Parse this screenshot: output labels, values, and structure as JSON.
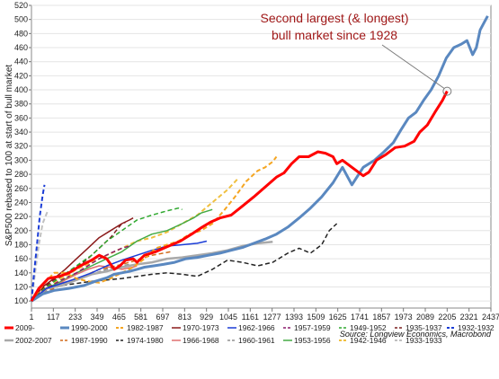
{
  "chart_data": {
    "type": "line",
    "annotation": {
      "lines": [
        "Second largest (& longest)",
        "bull market since 1928"
      ],
      "color": "#a01818",
      "target_x": 2205,
      "target_y": 398
    },
    "ylabel": "S&P500 rebased to 100 at start of bull market",
    "source": "Source: Longview Economics, Macrobond",
    "ylim": [
      90,
      520
    ],
    "xlim": [
      1,
      2437
    ],
    "yticks": [
      100,
      120,
      140,
      160,
      180,
      200,
      220,
      240,
      260,
      280,
      300,
      320,
      340,
      360,
      380,
      400,
      420,
      440,
      460,
      480,
      500,
      520
    ],
    "xticks": [
      1,
      117,
      233,
      349,
      465,
      581,
      697,
      813,
      929,
      1045,
      1161,
      1277,
      1393,
      1509,
      1625,
      1741,
      1857,
      1973,
      2089,
      2205,
      2321,
      2437
    ],
    "legend": [
      {
        "name": "2009-",
        "color": "#ff0000",
        "dash": "solid",
        "width": 3
      },
      {
        "name": "1990-2000",
        "color": "#5a88c0",
        "dash": "solid",
        "width": 3
      },
      {
        "name": "1982-1987",
        "color": "#f5a623",
        "dash": "dash",
        "width": 2
      },
      {
        "name": "1970-1973",
        "color": "#8b1a1a",
        "dash": "solid",
        "width": 1.5
      },
      {
        "name": "1962-1966",
        "color": "#1a3cd6",
        "dash": "solid",
        "width": 1.5
      },
      {
        "name": "1957-1959",
        "color": "#8b1a6b",
        "dash": "dash",
        "width": 1.5
      },
      {
        "name": "1949-1952",
        "color": "#2ea82e",
        "dash": "dash",
        "width": 1.5
      },
      {
        "name": "1935-1937",
        "color": "#7a1e1e",
        "dash": "dash",
        "width": 1.5
      },
      {
        "name": "1932-1932",
        "color": "#1a3cd6",
        "dash": "dash",
        "width": 2
      },
      {
        "name": "2002-2007",
        "color": "#a9a9a9",
        "dash": "solid",
        "width": 2.5
      },
      {
        "name": "1987-1990",
        "color": "#d06a1a",
        "dash": "dash",
        "width": 1.5
      },
      {
        "name": "1974-1980",
        "color": "#222222",
        "dash": "dash",
        "width": 1.5
      },
      {
        "name": "1966-1968",
        "color": "#e07070",
        "dash": "solid",
        "width": 1.5
      },
      {
        "name": "1960-1961",
        "color": "#909090",
        "dash": "dash",
        "width": 1.5
      },
      {
        "name": "1953-1956",
        "color": "#44aa44",
        "dash": "solid",
        "width": 1.5
      },
      {
        "name": "1942-1946",
        "color": "#f0c040",
        "dash": "dash",
        "width": 2
      },
      {
        "name": "1933-1933",
        "color": "#c0c0c0",
        "dash": "dash",
        "width": 2
      }
    ],
    "series": [
      {
        "name": "2009-",
        "x": [
          1,
          40,
          90,
          150,
          200,
          260,
          320,
          360,
          400,
          440,
          470,
          500,
          540,
          560,
          600,
          660,
          720,
          790,
          850,
          900,
          950,
          1000,
          1060,
          1120,
          1180,
          1240,
          1300,
          1340,
          1380,
          1420,
          1470,
          1520,
          1560,
          1600,
          1620,
          1650,
          1700,
          1760,
          1790,
          1830,
          1880,
          1930,
          1980,
          2030,
          2060,
          2100,
          2140,
          2180,
          2205
        ],
        "y": [
          100,
          118,
          132,
          135,
          140,
          150,
          158,
          165,
          160,
          145,
          150,
          158,
          160,
          155,
          165,
          170,
          177,
          185,
          195,
          204,
          212,
          218,
          222,
          235,
          248,
          262,
          276,
          282,
          295,
          305,
          305,
          312,
          310,
          305,
          295,
          300,
          290,
          278,
          283,
          300,
          308,
          318,
          320,
          327,
          340,
          350,
          368,
          385,
          398
        ]
      },
      {
        "name": "1990-2000",
        "x": [
          1,
          60,
          120,
          200,
          280,
          340,
          400,
          440,
          480,
          520,
          560,
          600,
          650,
          700,
          760,
          820,
          880,
          940,
          1000,
          1060,
          1120,
          1180,
          1240,
          1300,
          1360,
          1420,
          1480,
          1540,
          1600,
          1650,
          1700,
          1760,
          1820,
          1870,
          1920,
          1960,
          2000,
          2040,
          2080,
          2120,
          2160,
          2200,
          2240,
          2280,
          2310,
          2340,
          2360,
          2380,
          2400,
          2420
        ],
        "y": [
          100,
          110,
          115,
          118,
          122,
          128,
          133,
          138,
          140,
          142,
          145,
          148,
          150,
          152,
          155,
          160,
          162,
          165,
          168,
          172,
          176,
          182,
          188,
          195,
          205,
          218,
          232,
          248,
          268,
          290,
          265,
          290,
          300,
          312,
          325,
          343,
          360,
          368,
          385,
          400,
          420,
          445,
          460,
          465,
          470,
          450,
          460,
          485,
          495,
          505
        ]
      },
      {
        "name": "1982-1987",
        "x": [
          1,
          60,
          120,
          180,
          240,
          300,
          360,
          420,
          480,
          540,
          600,
          660,
          720,
          780,
          840,
          900,
          960,
          1020,
          1080,
          1140,
          1200,
          1240,
          1280,
          1300
        ],
        "y": [
          100,
          122,
          140,
          140,
          132,
          128,
          126,
          132,
          140,
          148,
          160,
          175,
          180,
          185,
          195,
          200,
          210,
          228,
          248,
          270,
          285,
          290,
          298,
          305
        ]
      },
      {
        "name": "1970-1973",
        "x": [
          1,
          60,
          120,
          180,
          240,
          300,
          360,
          420,
          480,
          520,
          540
        ],
        "y": [
          100,
          120,
          132,
          145,
          160,
          175,
          190,
          200,
          210,
          215,
          218
        ]
      },
      {
        "name": "1962-1966",
        "x": [
          1,
          80,
          160,
          240,
          320,
          400,
          480,
          560,
          640,
          720,
          800,
          880,
          930
        ],
        "y": [
          100,
          118,
          125,
          132,
          140,
          150,
          158,
          165,
          172,
          178,
          180,
          182,
          185
        ]
      },
      {
        "name": "1957-1959",
        "x": [
          1,
          80,
          160,
          240,
          300,
          360,
          420,
          480,
          520
        ],
        "y": [
          100,
          118,
          130,
          140,
          150,
          160,
          168,
          175,
          178
        ]
      },
      {
        "name": "1949-1952",
        "x": [
          1,
          80,
          160,
          240,
          320,
          400,
          480,
          560,
          640,
          720,
          780,
          800
        ],
        "y": [
          100,
          120,
          135,
          150,
          165,
          185,
          200,
          215,
          222,
          228,
          232,
          230
        ]
      },
      {
        "name": "1935-1937",
        "x": [
          1,
          60,
          120,
          180,
          240,
          300,
          360,
          420,
          480,
          500
        ],
        "y": [
          100,
          118,
          130,
          138,
          148,
          160,
          175,
          190,
          210,
          212
        ]
      },
      {
        "name": "1932-1932",
        "x": [
          1,
          15,
          30,
          45,
          60,
          70
        ],
        "y": [
          100,
          140,
          180,
          220,
          250,
          265
        ]
      },
      {
        "name": "2002-2007",
        "x": [
          1,
          80,
          160,
          240,
          320,
          400,
          480,
          560,
          640,
          720,
          800,
          880,
          960,
          1040,
          1120,
          1200,
          1280
        ],
        "y": [
          100,
          118,
          122,
          130,
          138,
          142,
          148,
          152,
          155,
          160,
          162,
          165,
          168,
          172,
          178,
          182,
          184
        ]
      },
      {
        "name": "1987-1990",
        "x": [
          1,
          60,
          120,
          180,
          240,
          300,
          360,
          420,
          480,
          560,
          640,
          700,
          740
        ],
        "y": [
          100,
          110,
          118,
          125,
          130,
          138,
          145,
          148,
          152,
          158,
          165,
          168,
          170
        ]
      },
      {
        "name": "1974-1980",
        "x": [
          1,
          80,
          160,
          240,
          320,
          400,
          480,
          560,
          640,
          720,
          800,
          880,
          960,
          1040,
          1120,
          1200,
          1280,
          1360,
          1420,
          1480,
          1540,
          1580,
          1620
        ],
        "y": [
          100,
          118,
          122,
          125,
          128,
          130,
          132,
          135,
          138,
          140,
          138,
          135,
          145,
          158,
          155,
          150,
          155,
          168,
          175,
          168,
          180,
          200,
          210
        ]
      },
      {
        "name": "1966-1968",
        "x": [
          1,
          60,
          120,
          180,
          240,
          300,
          360,
          420,
          480,
          540,
          560
        ],
        "y": [
          100,
          115,
          120,
          130,
          138,
          145,
          150,
          148,
          145,
          148,
          150
        ]
      },
      {
        "name": "1960-1961",
        "x": [
          1,
          80,
          160,
          240,
          320,
          400,
          480,
          520
        ],
        "y": [
          100,
          115,
          125,
          132,
          138,
          145,
          150,
          152
        ]
      },
      {
        "name": "1953-1956",
        "x": [
          1,
          80,
          160,
          240,
          320,
          400,
          480,
          560,
          640,
          720,
          800,
          860,
          900,
          960
        ],
        "y": [
          100,
          118,
          128,
          140,
          150,
          160,
          170,
          185,
          195,
          200,
          210,
          218,
          225,
          230
        ]
      },
      {
        "name": "1942-1946",
        "x": [
          1,
          80,
          160,
          240,
          320,
          400,
          480,
          560,
          640,
          720,
          800,
          880,
          960,
          1040,
          1100
        ],
        "y": [
          100,
          120,
          132,
          145,
          155,
          165,
          175,
          185,
          190,
          198,
          210,
          222,
          240,
          258,
          275
        ]
      },
      {
        "name": "1933-1933",
        "x": [
          1,
          20,
          40,
          60,
          75,
          90
        ],
        "y": [
          100,
          140,
          180,
          210,
          220,
          230
        ]
      }
    ]
  }
}
